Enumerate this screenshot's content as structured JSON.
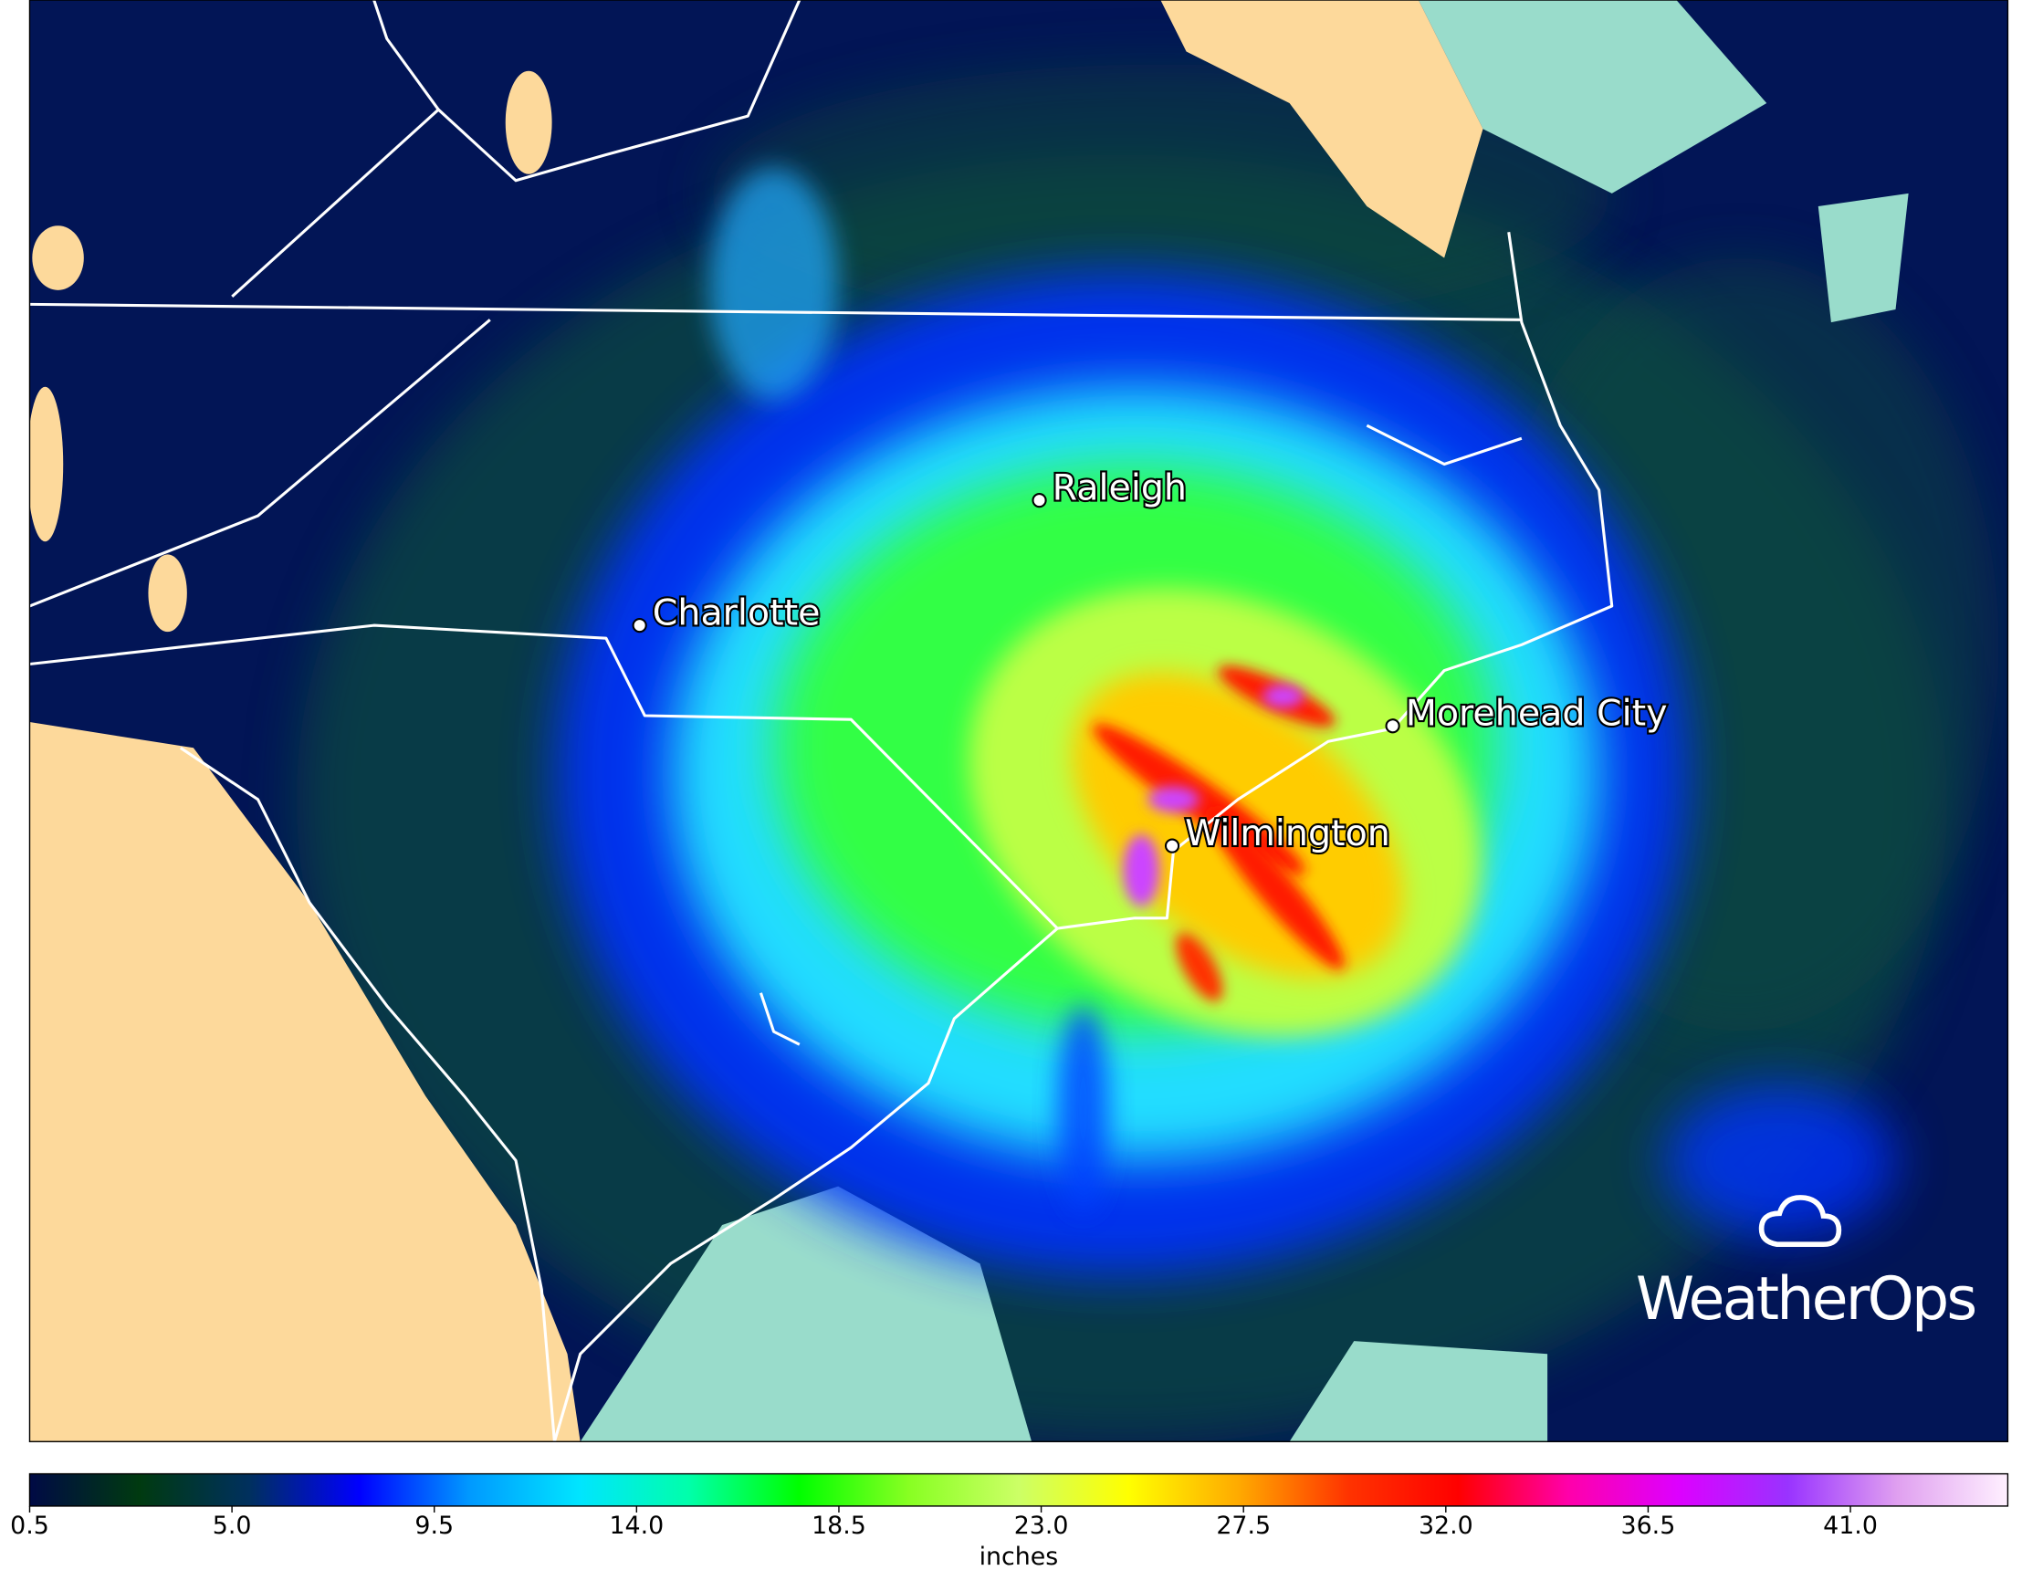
{
  "map": {
    "cities": [
      {
        "name": "Raleigh"
      },
      {
        "name": "Charlotte"
      },
      {
        "name": "Morehead City"
      },
      {
        "name": "Wilmington"
      }
    ],
    "logo": "WeatherOps"
  },
  "colorbar": {
    "label": "inches",
    "xlim": [
      0.5,
      44.5
    ],
    "xticks": [
      {
        "value": 0.5,
        "label": "0.5"
      },
      {
        "value": 5,
        "label": "5.0"
      },
      {
        "value": 9.5,
        "label": "9.5"
      },
      {
        "value": 14,
        "label": "14.0"
      },
      {
        "value": 18.5,
        "label": "18.5"
      },
      {
        "value": 23,
        "label": "23.0"
      },
      {
        "value": 27.5,
        "label": "27.5"
      },
      {
        "value": 32,
        "label": "32.0"
      },
      {
        "value": 36.5,
        "label": "36.5"
      },
      {
        "value": 41,
        "label": "41.0"
      }
    ],
    "colors": [
      "#000a45",
      "#003a10",
      "#00305e",
      "#0000ff",
      "#0099ff",
      "#00e5ff",
      "#00ffaa",
      "#00ff00",
      "#88ff22",
      "#ccff66",
      "#ffff00",
      "#ffaa00",
      "#ff3300",
      "#ff0000",
      "#ff00aa",
      "#dd00ff",
      "#9933ff",
      "#e0a0f0",
      "#fff0ff"
    ]
  }
}
